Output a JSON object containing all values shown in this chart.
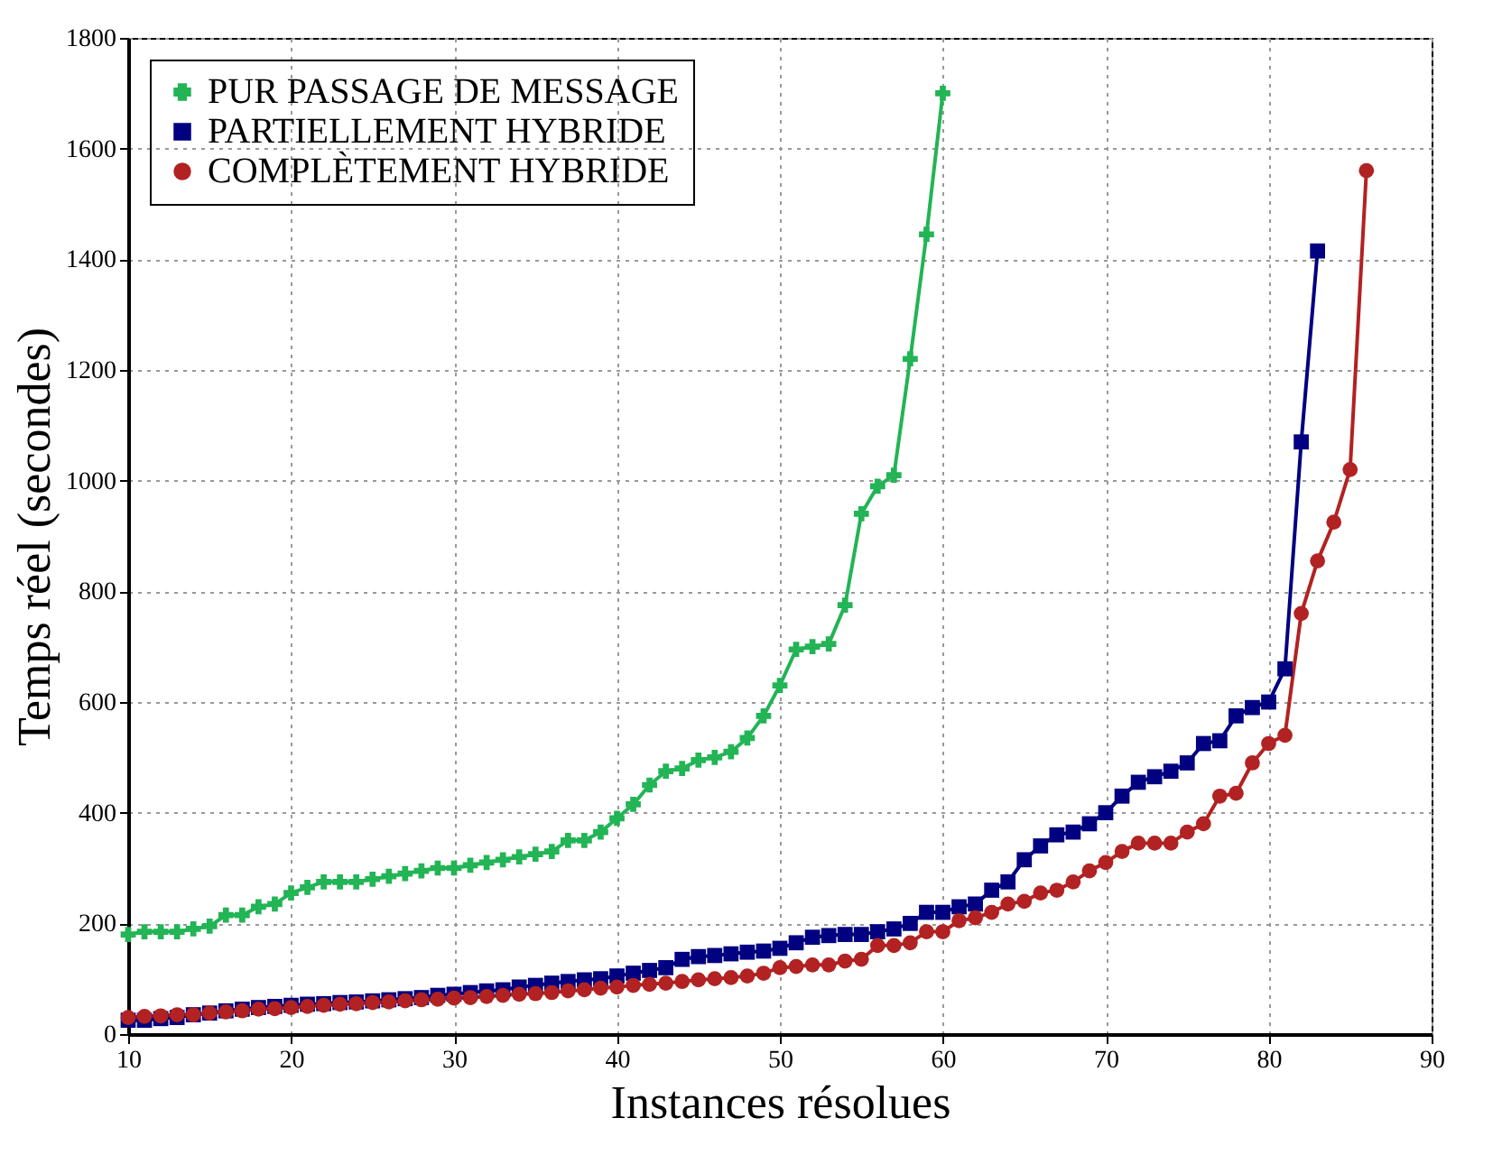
{
  "chart_data": {
    "type": "line",
    "xlabel": "Instances résolues",
    "ylabel": "Temps réel (secondes)",
    "x": [
      10,
      11,
      12,
      13,
      14,
      15,
      16,
      17,
      18,
      19,
      20,
      21,
      22,
      23,
      24,
      25,
      26,
      27,
      28,
      29,
      30,
      31,
      32,
      33,
      34,
      35,
      36,
      37,
      38,
      39,
      40,
      41,
      42,
      43,
      44,
      45,
      46,
      47,
      48,
      49,
      50,
      51,
      52,
      53,
      54,
      55,
      56,
      57,
      58,
      59,
      60,
      61,
      62,
      63,
      64,
      65,
      66,
      67,
      68,
      69,
      70,
      71,
      72,
      73,
      74,
      75,
      76,
      77,
      78,
      79,
      80,
      81,
      82,
      83,
      84,
      85,
      86
    ],
    "series": [
      {
        "name": "PUR PASSAGE DE MESSAGE",
        "color": "#22b455",
        "marker": "cross",
        "values": [
          180,
          185,
          185,
          185,
          190,
          195,
          215,
          215,
          230,
          235,
          255,
          265,
          275,
          275,
          275,
          280,
          285,
          290,
          295,
          300,
          300,
          305,
          310,
          315,
          320,
          325,
          330,
          350,
          350,
          365,
          390,
          415,
          450,
          475,
          480,
          495,
          500,
          510,
          535,
          575,
          630,
          695,
          700,
          705,
          775,
          940,
          990,
          1010,
          1220,
          1445,
          1700,
          null,
          null,
          null,
          null,
          null,
          null,
          null,
          null,
          null,
          null,
          null,
          null,
          null,
          null,
          null,
          null,
          null,
          null,
          null,
          null,
          null,
          null,
          null,
          null,
          null,
          null
        ]
      },
      {
        "name": "PARTIELLEMENT HYBRIDE",
        "color": "#000080",
        "marker": "square",
        "values": [
          25,
          25,
          28,
          30,
          35,
          38,
          42,
          45,
          48,
          50,
          52,
          54,
          55,
          57,
          58,
          60,
          62,
          64,
          66,
          70,
          72,
          75,
          78,
          80,
          85,
          88,
          92,
          95,
          98,
          100,
          105,
          110,
          115,
          120,
          135,
          140,
          142,
          145,
          148,
          150,
          155,
          165,
          175,
          178,
          180,
          180,
          185,
          190,
          200,
          220,
          220,
          230,
          235,
          260,
          275,
          315,
          340,
          360,
          365,
          380,
          400,
          430,
          455,
          465,
          475,
          490,
          525,
          530,
          575,
          590,
          600,
          660,
          1070,
          1415,
          null,
          null,
          null
        ]
      },
      {
        "name": "COMPLÈTEMENT HYBRIDE",
        "color": "#b22222",
        "marker": "circle",
        "values": [
          30,
          32,
          33,
          35,
          35,
          38,
          40,
          42,
          45,
          46,
          48,
          50,
          52,
          54,
          55,
          57,
          58,
          60,
          62,
          63,
          65,
          66,
          68,
          70,
          72,
          73,
          75,
          78,
          80,
          83,
          85,
          88,
          90,
          92,
          95,
          98,
          100,
          102,
          105,
          110,
          120,
          122,
          125,
          125,
          132,
          135,
          160,
          160,
          165,
          185,
          185,
          205,
          210,
          220,
          235,
          240,
          255,
          260,
          275,
          295,
          310,
          330,
          345,
          345,
          345,
          365,
          380,
          430,
          435,
          490,
          525,
          540,
          760,
          855,
          925,
          1020,
          1560
        ]
      }
    ],
    "xlim": [
      10,
      90
    ],
    "xticks": [
      10,
      20,
      30,
      40,
      50,
      60,
      70,
      80,
      90
    ],
    "ylim": [
      0,
      1800
    ],
    "yticks": [
      0,
      200,
      400,
      600,
      800,
      1000,
      1200,
      1400,
      1600,
      1800
    ],
    "grid": true,
    "legend": "top left",
    "line_style": "solid"
  }
}
